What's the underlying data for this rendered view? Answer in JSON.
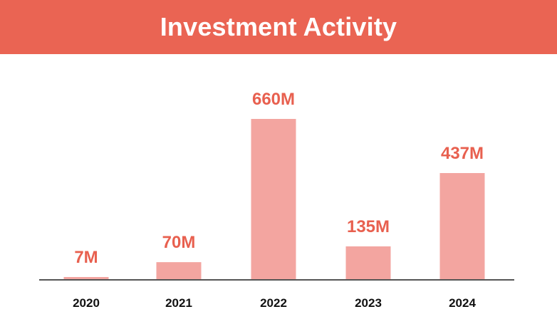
{
  "colors": {
    "banner": "#ea6453",
    "bar": "#f3a5a0",
    "value_label": "#e8604f",
    "axis": "#555555"
  },
  "chart_data": {
    "type": "bar",
    "title": "Investment Activity",
    "xlabel": "",
    "ylabel": "",
    "categories": [
      "2020",
      "2021",
      "2022",
      "2023",
      "2024"
    ],
    "values": [
      7,
      70,
      660,
      135,
      437
    ],
    "value_labels": [
      "7M",
      "70M",
      "660M",
      "135M",
      "437M"
    ],
    "ylim": [
      0,
      700
    ],
    "grid": false,
    "legend": "none"
  }
}
